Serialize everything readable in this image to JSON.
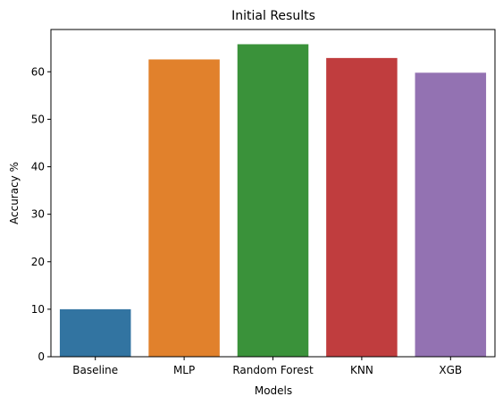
{
  "chart_data": {
    "type": "bar",
    "title": "Initial Results",
    "xlabel": "Models",
    "ylabel": "Accuracy %",
    "categories": [
      "Baseline",
      "MLP",
      "Random Forest",
      "KNN",
      "XGB"
    ],
    "values": [
      10.0,
      62.6,
      65.8,
      62.9,
      59.8
    ],
    "colors": [
      "#3274a1",
      "#e1812c",
      "#3a923a",
      "#c03d3e",
      "#9372b2"
    ],
    "ylim": [
      0,
      68.9
    ],
    "yticks": [
      0,
      10,
      20,
      30,
      40,
      50,
      60
    ],
    "grid": false
  }
}
